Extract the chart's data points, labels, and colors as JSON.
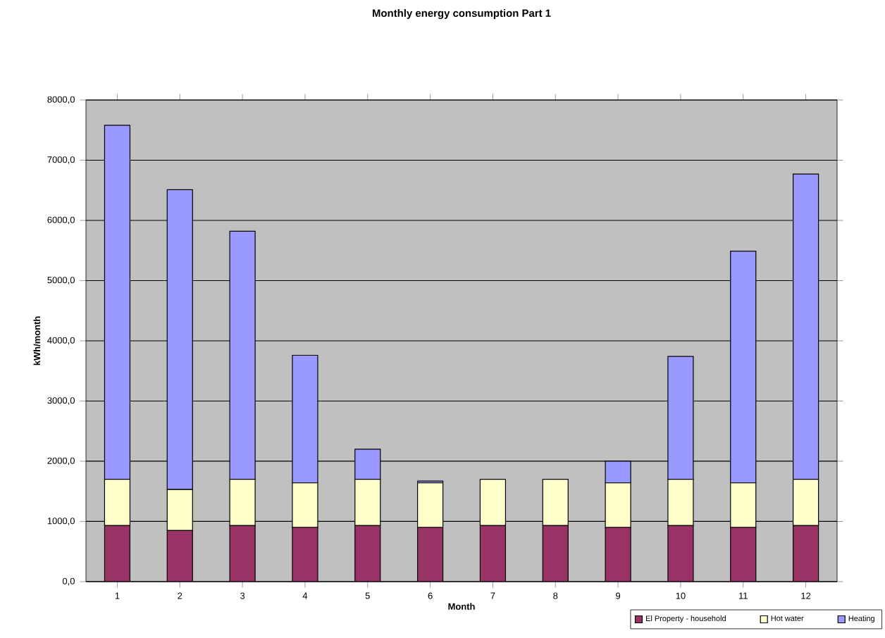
{
  "chart_data": {
    "type": "bar",
    "title": "Monthly energy consumption Part 1",
    "xlabel": "Month",
    "ylabel": "kWh/month",
    "categories": [
      "1",
      "2",
      "3",
      "4",
      "5",
      "6",
      "7",
      "8",
      "9",
      "10",
      "11",
      "12"
    ],
    "stacked": true,
    "series": [
      {
        "name": "El Property - household",
        "color": "#993366",
        "values": [
          930,
          850,
          930,
          900,
          930,
          900,
          930,
          930,
          900,
          930,
          900,
          930
        ]
      },
      {
        "name": "Hot water",
        "color": "#ffffcc",
        "values": [
          770,
          680,
          770,
          740,
          770,
          740,
          770,
          770,
          740,
          770,
          740,
          770
        ]
      },
      {
        "name": "Heating",
        "color": "#9999ff",
        "values": [
          5880,
          4980,
          4120,
          2120,
          500,
          30,
          0,
          0,
          360,
          2040,
          3850,
          5070
        ]
      }
    ],
    "ylim": [
      0,
      8000
    ],
    "yticks": [
      {
        "value": 0,
        "label": "0,0"
      },
      {
        "value": 1000,
        "label": "1000,0"
      },
      {
        "value": 2000,
        "label": "2000,0"
      },
      {
        "value": 3000,
        "label": "3000,0"
      },
      {
        "value": 4000,
        "label": "4000,0"
      },
      {
        "value": 5000,
        "label": "5000,0"
      },
      {
        "value": 6000,
        "label": "6000,0"
      },
      {
        "value": 7000,
        "label": "7000,0"
      },
      {
        "value": 8000,
        "label": "8000,0"
      }
    ],
    "grid": "y",
    "legend": "bottom right"
  }
}
